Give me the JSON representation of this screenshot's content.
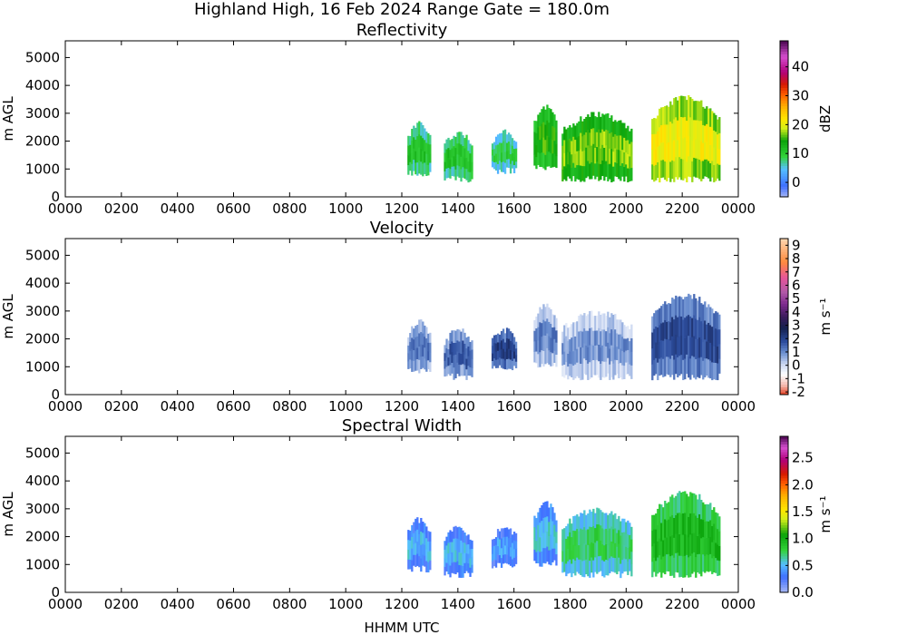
{
  "figure": {
    "title": "Highland High, 16 Feb 2024 Range Gate = 180.0m",
    "xlabel": "HHMM UTC"
  },
  "chart_data": [
    {
      "type": "heatmap",
      "title": "Reflectivity",
      "ylabel": "m AGL",
      "colorbar_label": "dBZ",
      "x_ticks": [
        "0000",
        "0200",
        "0400",
        "0600",
        "0800",
        "1000",
        "1200",
        "1400",
        "1600",
        "1800",
        "2000",
        "2200",
        "0000"
      ],
      "y_ticks": [
        0,
        1000,
        2000,
        3000,
        4000,
        5000
      ],
      "xlim_hours": [
        0,
        24
      ],
      "ylim": [
        0,
        5600
      ],
      "colorbar_ticks": [
        0,
        10,
        20,
        30,
        40
      ],
      "clim": [
        -5,
        49
      ],
      "blocks": [
        {
          "t0": 12.2,
          "t1": 13.0,
          "base": 800,
          "top": 2600,
          "value": 8
        },
        {
          "t0": 13.5,
          "t1": 14.5,
          "base": 600,
          "top": 2300,
          "value": 8
        },
        {
          "t0": 15.2,
          "t1": 16.1,
          "base": 900,
          "top": 2300,
          "value": 6
        },
        {
          "t0": 16.7,
          "t1": 17.5,
          "base": 1000,
          "top": 3200,
          "value": 12
        },
        {
          "t0": 17.7,
          "t1": 20.2,
          "base": 600,
          "top": 2950,
          "value": 14
        },
        {
          "t0": 20.9,
          "t1": 23.3,
          "base": 600,
          "top": 3550,
          "value": 18
        }
      ]
    },
    {
      "type": "heatmap",
      "title": "Velocity",
      "ylabel": "m AGL",
      "colorbar_label": "m s⁻¹",
      "x_ticks": [
        "0000",
        "0200",
        "0400",
        "0600",
        "0800",
        "1000",
        "1200",
        "1400",
        "1600",
        "1800",
        "2000",
        "2200",
        "0000"
      ],
      "y_ticks": [
        0,
        1000,
        2000,
        3000,
        4000,
        5000
      ],
      "xlim_hours": [
        0,
        24
      ],
      "ylim": [
        0,
        5600
      ],
      "colorbar_ticks": [
        -2,
        -1,
        0,
        1,
        2,
        3,
        4,
        5,
        6,
        7,
        8,
        9
      ],
      "clim": [
        -2.2,
        9.5
      ],
      "blocks": [
        {
          "t0": 12.2,
          "t1": 13.0,
          "base": 800,
          "top": 2600,
          "value": 0.8
        },
        {
          "t0": 13.5,
          "t1": 14.5,
          "base": 600,
          "top": 2300,
          "value": 1.0
        },
        {
          "t0": 15.2,
          "t1": 16.1,
          "base": 900,
          "top": 2300,
          "value": 1.5
        },
        {
          "t0": 16.7,
          "t1": 17.5,
          "base": 1000,
          "top": 3200,
          "value": 0.5
        },
        {
          "t0": 17.7,
          "t1": 20.2,
          "base": 600,
          "top": 2950,
          "value": 0.3
        },
        {
          "t0": 20.9,
          "t1": 23.3,
          "base": 600,
          "top": 3550,
          "value": 1.3
        }
      ]
    },
    {
      "type": "heatmap",
      "title": "Spectral Width",
      "ylabel": "m AGL",
      "colorbar_label": "m s⁻¹",
      "x_ticks": [
        "0000",
        "0200",
        "0400",
        "0600",
        "0800",
        "1000",
        "1200",
        "1400",
        "1600",
        "1800",
        "2000",
        "2200",
        "0000"
      ],
      "y_ticks": [
        0,
        1000,
        2000,
        3000,
        4000,
        5000
      ],
      "xlim_hours": [
        0,
        24
      ],
      "ylim": [
        0,
        5600
      ],
      "colorbar_ticks": [
        "0.0",
        "0.5",
        "1.0",
        "1.5",
        "2.0",
        "2.5"
      ],
      "clim": [
        0,
        2.9
      ],
      "blocks": [
        {
          "t0": 12.2,
          "t1": 13.0,
          "base": 800,
          "top": 2600,
          "value": 0.35
        },
        {
          "t0": 13.5,
          "t1": 14.5,
          "base": 600,
          "top": 2300,
          "value": 0.35
        },
        {
          "t0": 15.2,
          "t1": 16.1,
          "base": 900,
          "top": 2300,
          "value": 0.3
        },
        {
          "t0": 16.7,
          "t1": 17.5,
          "base": 1000,
          "top": 3200,
          "value": 0.4
        },
        {
          "t0": 17.7,
          "t1": 20.2,
          "base": 600,
          "top": 2950,
          "value": 0.6
        },
        {
          "t0": 20.9,
          "t1": 23.3,
          "base": 600,
          "top": 3550,
          "value": 0.8
        }
      ]
    }
  ]
}
